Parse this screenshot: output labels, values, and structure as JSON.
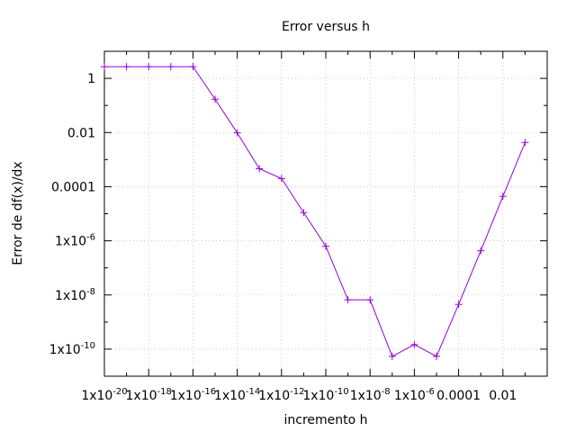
{
  "chart_data": {
    "type": "line",
    "title": "Error versus h",
    "xlabel": "incremento h",
    "ylabel": "Error de df(x)/dx",
    "x_scale": "log",
    "y_scale": "log",
    "xlim": [
      1e-20,
      1
    ],
    "ylim": [
      1e-11,
      10
    ],
    "grid": true,
    "line_color": "#9400D3",
    "x_ticks": [
      {
        "value": 1e-20,
        "label": "1x10-20",
        "base": "1x10",
        "exp": "-20"
      },
      {
        "value": 1e-18,
        "label": "1x10-18",
        "base": "1x10",
        "exp": "-18"
      },
      {
        "value": 1e-16,
        "label": "1x10-16",
        "base": "1x10",
        "exp": "-16"
      },
      {
        "value": 1e-14,
        "label": "1x10-14",
        "base": "1x10",
        "exp": "-14"
      },
      {
        "value": 1e-12,
        "label": "1x10-12",
        "base": "1x10",
        "exp": "-12"
      },
      {
        "value": 1e-10,
        "label": "1x10-10",
        "base": "1x10",
        "exp": "-10"
      },
      {
        "value": 1e-08,
        "label": "1x10-8",
        "base": "1x10",
        "exp": "-8"
      },
      {
        "value": 1e-06,
        "label": "1x10-6",
        "base": "1x10",
        "exp": "-6"
      },
      {
        "value": 0.0001,
        "label": "0.0001",
        "base": "0.0001",
        "exp": ""
      },
      {
        "value": 0.01,
        "label": "0.01",
        "base": "0.01",
        "exp": ""
      }
    ],
    "y_ticks": [
      {
        "value": 1,
        "label": "1",
        "base": "1",
        "exp": ""
      },
      {
        "value": 0.01,
        "label": "0.01",
        "base": "0.01",
        "exp": ""
      },
      {
        "value": 0.0001,
        "label": "0.0001",
        "base": "0.0001",
        "exp": ""
      },
      {
        "value": 1e-06,
        "label": "1x10-6",
        "base": "1x10",
        "exp": "-6"
      },
      {
        "value": 1e-08,
        "label": "1x10-8",
        "base": "1x10",
        "exp": "-8"
      },
      {
        "value": 1e-10,
        "label": "1x10-10",
        "base": "1x10",
        "exp": "-10"
      }
    ],
    "x": [
      1e-20,
      1e-19,
      1e-18,
      1e-17,
      1e-16,
      1e-15,
      1e-14,
      1e-13,
      1e-12,
      1e-11,
      1e-10,
      1e-09,
      1e-08,
      1e-07,
      1e-06,
      1e-05,
      0.0001,
      0.001,
      0.01,
      0.1
    ],
    "y": [
      2.7,
      2.7,
      2.7,
      2.7,
      2.7,
      0.17,
      0.0097,
      0.00046,
      0.0002,
      1.1e-05,
      6.3e-07,
      6.6e-09,
      6.6e-09,
      5.4e-11,
      1.47e-10,
      5.4e-11,
      4.5e-09,
      4.3e-07,
      4.4e-05,
      0.0043
    ]
  }
}
